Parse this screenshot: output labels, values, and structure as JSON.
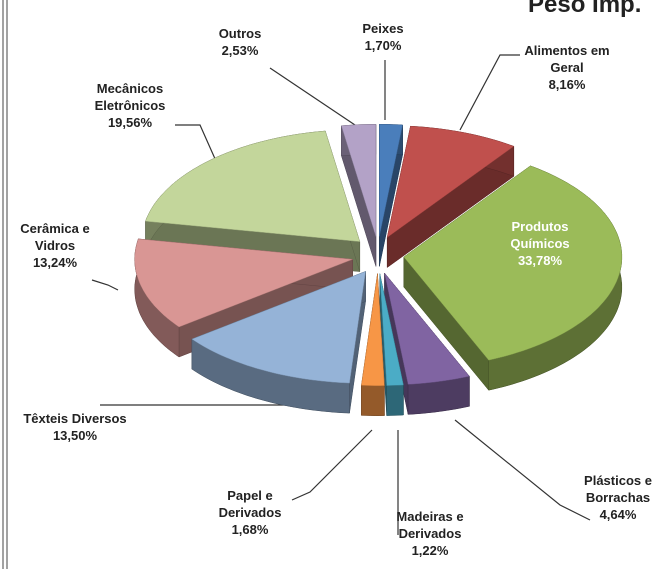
{
  "chart_data": {
    "type": "pie",
    "title": "Peso Imp.",
    "categories": [
      "Peixes",
      "Alimentos em Geral",
      "Produtos Químicos",
      "Plásticos e Borrachas",
      "Madeiras e Derivados",
      "Papel e Derivados",
      "Têxteis Diversos",
      "Cerâmica e Vidros",
      "Mecânicos Eletrônicos",
      "Outros"
    ],
    "values": [
      1.7,
      8.16,
      33.78,
      4.64,
      1.22,
      1.68,
      13.5,
      13.24,
      19.56,
      2.53
    ],
    "value_labels": [
      "1,70%",
      "8,16%",
      "33,78%",
      "4,64%",
      "1,22%",
      "1,68%",
      "13,50%",
      "13,24%",
      "19,56%",
      "2,53%"
    ],
    "colors": [
      "#4a7ebb",
      "#c0504d",
      "#9bbb59",
      "#8064a2",
      "#4bacc6",
      "#f79646",
      "#95b3d7",
      "#d99694",
      "#c3d69b",
      "#b3a2c7"
    ]
  }
}
